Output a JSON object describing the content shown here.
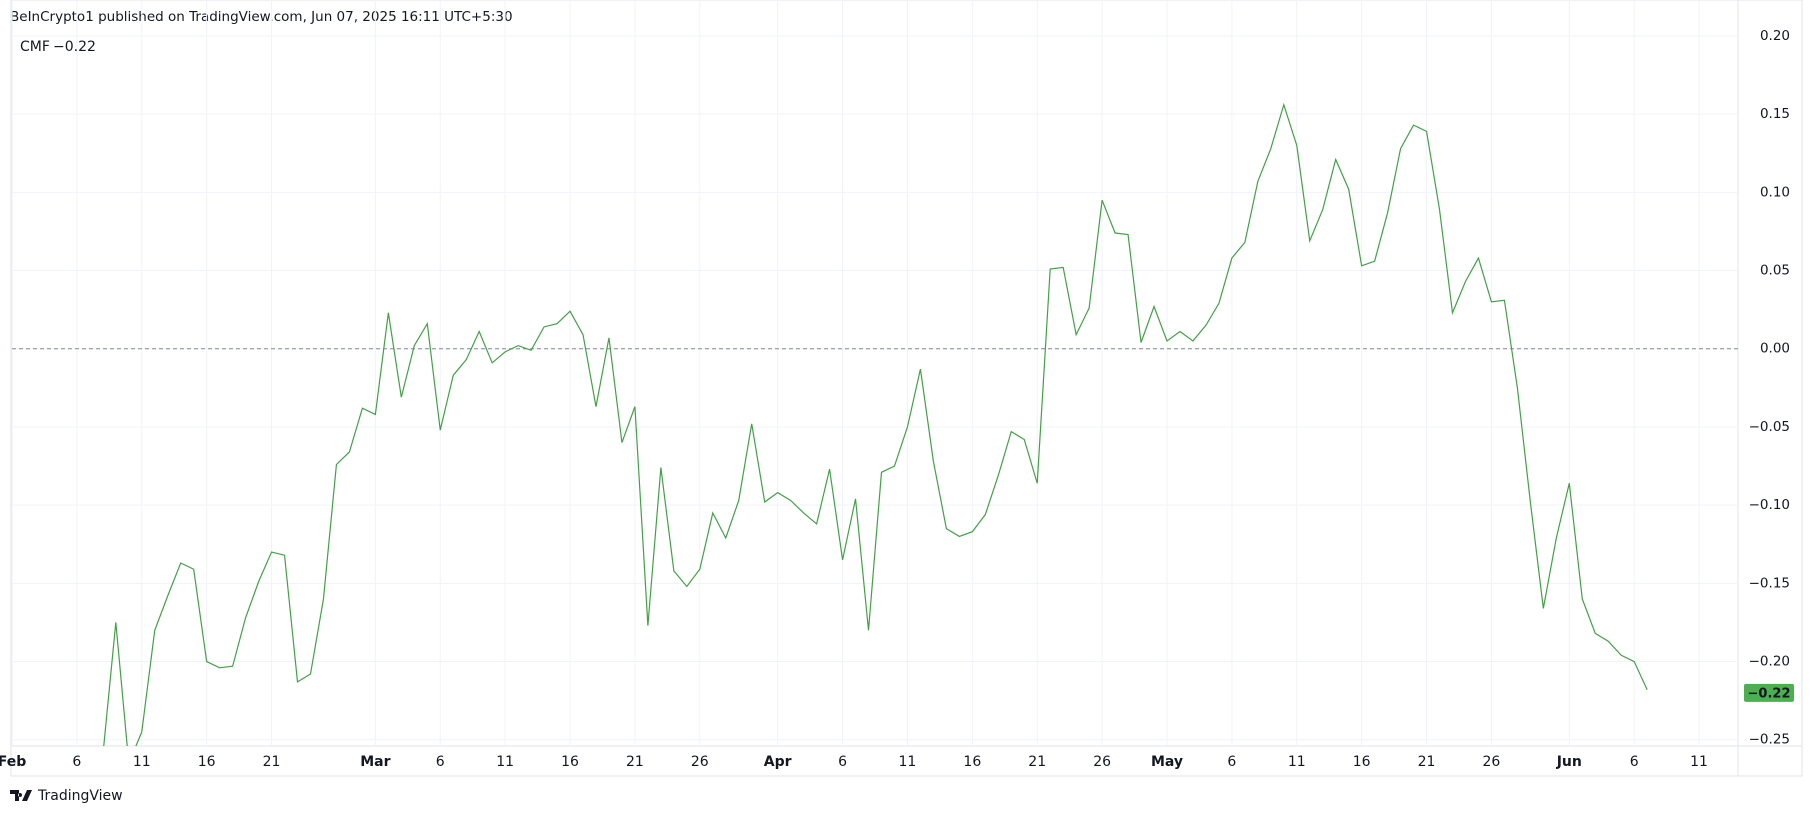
{
  "header": {
    "text": "BeInCrypto1 published on TradingView.com, Jun 07, 2025 16:11 UTC+5:30"
  },
  "footer": {
    "brand": "TradingView"
  },
  "chart_data": {
    "type": "line",
    "indicator": "CMF",
    "last_value": {
      "value": -0.22,
      "label": "−0.22"
    },
    "baseline": 0,
    "color": "#43a047",
    "badge_color": "#4caf50",
    "grid": true,
    "x": [
      "2025-02-08",
      "2025-02-09",
      "2025-02-10",
      "2025-02-11",
      "2025-02-12",
      "2025-02-13",
      "2025-02-14",
      "2025-02-15",
      "2025-02-16",
      "2025-02-17",
      "2025-02-18",
      "2025-02-19",
      "2025-02-20",
      "2025-02-21",
      "2025-02-22",
      "2025-02-23",
      "2025-02-24",
      "2025-02-25",
      "2025-02-26",
      "2025-02-27",
      "2025-02-28",
      "2025-03-01",
      "2025-03-02",
      "2025-03-03",
      "2025-03-04",
      "2025-03-05",
      "2025-03-06",
      "2025-03-07",
      "2025-03-08",
      "2025-03-09",
      "2025-03-10",
      "2025-03-11",
      "2025-03-12",
      "2025-03-13",
      "2025-03-14",
      "2025-03-15",
      "2025-03-16",
      "2025-03-17",
      "2025-03-18",
      "2025-03-19",
      "2025-03-20",
      "2025-03-21",
      "2025-03-22",
      "2025-03-23",
      "2025-03-24",
      "2025-03-25",
      "2025-03-26",
      "2025-03-27",
      "2025-03-28",
      "2025-03-29",
      "2025-03-30",
      "2025-03-31",
      "2025-04-01",
      "2025-04-02",
      "2025-04-03",
      "2025-04-04",
      "2025-04-05",
      "2025-04-06",
      "2025-04-07",
      "2025-04-08",
      "2025-04-09",
      "2025-04-10",
      "2025-04-11",
      "2025-04-12",
      "2025-04-13",
      "2025-04-14",
      "2025-04-15",
      "2025-04-16",
      "2025-04-17",
      "2025-04-18",
      "2025-04-19",
      "2025-04-20",
      "2025-04-21",
      "2025-04-22",
      "2025-04-23",
      "2025-04-24",
      "2025-04-25",
      "2025-04-26",
      "2025-04-27",
      "2025-04-28",
      "2025-04-29",
      "2025-04-30",
      "2025-05-01",
      "2025-05-02",
      "2025-05-03",
      "2025-05-04",
      "2025-05-05",
      "2025-05-06",
      "2025-05-07",
      "2025-05-08",
      "2025-05-09",
      "2025-05-10",
      "2025-05-11",
      "2025-05-12",
      "2025-05-13",
      "2025-05-14",
      "2025-05-15",
      "2025-05-16",
      "2025-05-17",
      "2025-05-18",
      "2025-05-19",
      "2025-05-20",
      "2025-05-21",
      "2025-05-22",
      "2025-05-23",
      "2025-05-24",
      "2025-05-25",
      "2025-05-26",
      "2025-05-27",
      "2025-05-28",
      "2025-05-29",
      "2025-05-30",
      "2025-05-31",
      "2025-06-01",
      "2025-06-02",
      "2025-06-03",
      "2025-06-04",
      "2025-06-05",
      "2025-06-06",
      "2025-06-07"
    ],
    "values": [
      -0.26,
      -0.175,
      -0.265,
      -0.245,
      -0.18,
      -0.158,
      -0.137,
      -0.141,
      -0.2,
      -0.204,
      -0.203,
      -0.172,
      -0.149,
      -0.13,
      -0.132,
      -0.213,
      -0.208,
      -0.16,
      -0.074,
      -0.066,
      -0.038,
      -0.042,
      0.023,
      -0.031,
      0.002,
      0.016,
      -0.052,
      -0.017,
      -0.007,
      0.011,
      -0.009,
      -0.002,
      0.002,
      -0.001,
      0.014,
      0.016,
      0.024,
      0.009,
      -0.037,
      0.007,
      -0.06,
      -0.037,
      -0.177,
      -0.076,
      -0.142,
      -0.152,
      -0.141,
      -0.105,
      -0.121,
      -0.097,
      -0.048,
      -0.098,
      -0.092,
      -0.097,
      -0.105,
      -0.112,
      -0.077,
      -0.135,
      -0.096,
      -0.18,
      -0.079,
      -0.075,
      -0.05,
      -0.013,
      -0.072,
      -0.115,
      -0.12,
      -0.117,
      -0.106,
      -0.081,
      -0.053,
      -0.058,
      -0.086,
      0.051,
      0.052,
      0.009,
      0.026,
      0.095,
      0.074,
      0.073,
      0.004,
      0.027,
      0.005,
      0.011,
      0.005,
      0.015,
      0.029,
      0.058,
      0.068,
      0.107,
      0.128,
      0.156,
      0.13,
      0.069,
      0.089,
      0.121,
      0.102,
      0.053,
      0.056,
      0.087,
      0.128,
      0.143,
      0.139,
      0.089,
      0.023,
      0.043,
      0.058,
      0.03,
      0.031,
      -0.025,
      -0.098,
      -0.166,
      -0.121,
      -0.086,
      -0.16,
      -0.182,
      -0.187,
      -0.196,
      -0.2,
      -0.218
    ],
    "xlim": [
      "2025-02-01",
      "2025-06-14"
    ],
    "ylim": [
      -0.254,
      0.207
    ],
    "yticks": [
      {
        "value": 0.2,
        "label": "0.20"
      },
      {
        "value": 0.15,
        "label": "0.15"
      },
      {
        "value": 0.1,
        "label": "0.10"
      },
      {
        "value": 0.05,
        "label": "0.05"
      },
      {
        "value": 0,
        "label": "0.00"
      },
      {
        "value": -0.05,
        "label": "−0.05"
      },
      {
        "value": -0.1,
        "label": "−0.10"
      },
      {
        "value": -0.15,
        "label": "−0.15"
      },
      {
        "value": -0.2,
        "label": "−0.20"
      },
      {
        "value": -0.25,
        "label": "−0.25"
      }
    ],
    "xticks": [
      {
        "value": "2025-02-01",
        "label": "Feb"
      },
      {
        "value": "2025-02-06",
        "label": "6"
      },
      {
        "value": "2025-02-11",
        "label": "11"
      },
      {
        "value": "2025-02-16",
        "label": "16"
      },
      {
        "value": "2025-02-21",
        "label": "21"
      },
      {
        "value": "2025-03-01",
        "label": "Mar"
      },
      {
        "value": "2025-03-06",
        "label": "6"
      },
      {
        "value": "2025-03-11",
        "label": "11"
      },
      {
        "value": "2025-03-16",
        "label": "16"
      },
      {
        "value": "2025-03-21",
        "label": "21"
      },
      {
        "value": "2025-03-26",
        "label": "26"
      },
      {
        "value": "2025-04-01",
        "label": "Apr"
      },
      {
        "value": "2025-04-06",
        "label": "6"
      },
      {
        "value": "2025-04-11",
        "label": "11"
      },
      {
        "value": "2025-04-16",
        "label": "16"
      },
      {
        "value": "2025-04-21",
        "label": "21"
      },
      {
        "value": "2025-04-26",
        "label": "26"
      },
      {
        "value": "2025-05-01",
        "label": "May"
      },
      {
        "value": "2025-05-06",
        "label": "6"
      },
      {
        "value": "2025-05-11",
        "label": "11"
      },
      {
        "value": "2025-05-16",
        "label": "16"
      },
      {
        "value": "2025-05-21",
        "label": "21"
      },
      {
        "value": "2025-05-26",
        "label": "26"
      },
      {
        "value": "2025-06-01",
        "label": "Jun"
      },
      {
        "value": "2025-06-06",
        "label": "6"
      },
      {
        "value": "2025-06-11",
        "label": "11"
      }
    ]
  }
}
